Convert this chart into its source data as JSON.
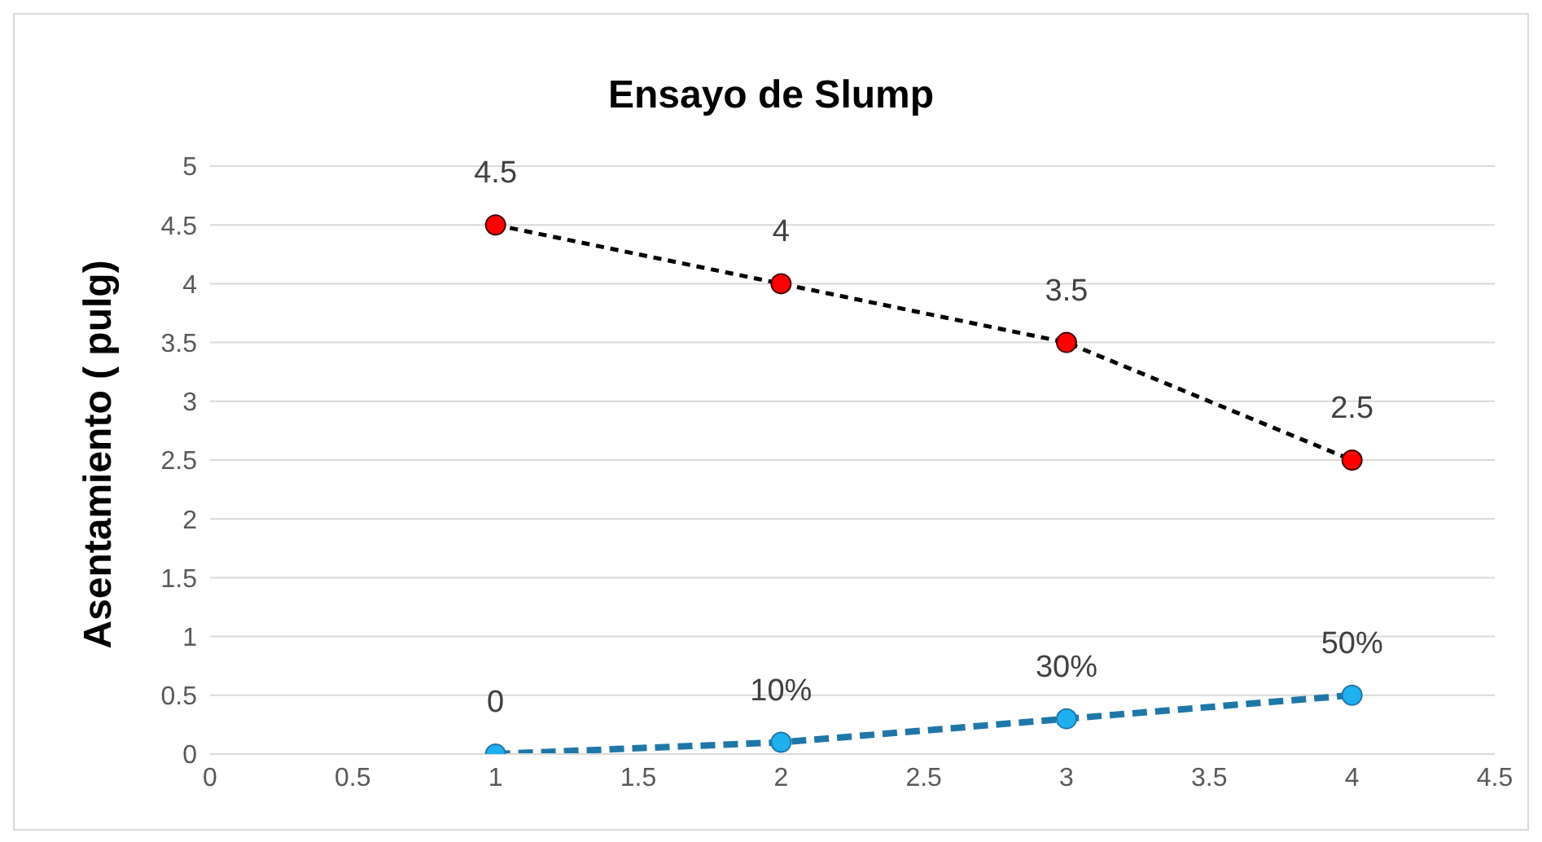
{
  "chart_data": {
    "type": "line",
    "title": "Ensayo de Slump",
    "ylabel": "Asentamiento ( pulg)",
    "x": [
      1,
      2,
      3,
      4
    ],
    "series": [
      {
        "color": "#000000",
        "colors": [
          "#ff0000",
          "#ff0000",
          "#ff0000",
          "#ff0000"
        ],
        "values": [
          4.5,
          4,
          3.5,
          2.5
        ],
        "value_labels": [
          "4.5",
          "4",
          "3.5",
          "2.5"
        ],
        "line_style": "dashed"
      },
      {
        "color": "#1f77a8",
        "colors": [
          "#1fb0f0",
          "#1fb0f0",
          "#1fb0f0",
          "#1fb0f0"
        ],
        "values": [
          0,
          0.1,
          0.3,
          0.5
        ],
        "value_labels": [
          "0",
          "10%",
          "30%",
          "50%"
        ],
        "line_style": "dashed"
      }
    ],
    "xlim": [
      0,
      4.5
    ],
    "xticks": [
      0,
      0.5,
      1,
      1.5,
      2,
      2.5,
      3,
      3.5,
      4,
      4.5
    ],
    "ylim": [
      0,
      5
    ],
    "yticks": [
      0,
      0.5,
      1,
      1.5,
      2,
      2.5,
      3,
      3.5,
      4,
      4.5,
      5
    ],
    "grid": "y",
    "marker": "circle"
  }
}
